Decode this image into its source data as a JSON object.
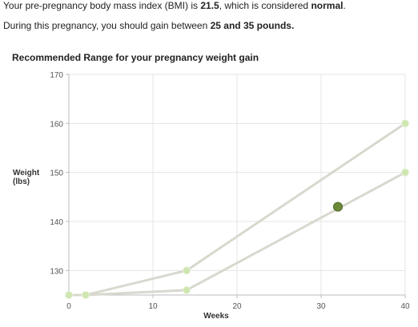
{
  "summary": {
    "bmi_prefix": "Your pre-pregnancy body mass index (BMI) is ",
    "bmi_value": "21.5",
    "bmi_middle": ", which is considered ",
    "bmi_category": "normal",
    "bmi_suffix": ".",
    "gain_prefix": "During this pregnancy, you should gain between ",
    "gain_range": "25 and 35 pounds.",
    "gain_suffix": ""
  },
  "colors": {
    "range_line": "#d8d8cf",
    "range_point": "#cfe6b0",
    "current_point": "#6b8a3a",
    "grid": "#e4e4e4",
    "axis": "#bbbbbb"
  },
  "chart_data": {
    "type": "line",
    "title": "Recommended Range for your pregnancy weight gain",
    "xlabel": "Weeks",
    "ylabel_lines": [
      "Weight",
      "(lbs)"
    ],
    "xlim": [
      0,
      40
    ],
    "ylim": [
      125,
      170
    ],
    "x_ticks": [
      0,
      10,
      20,
      30,
      40
    ],
    "y_ticks": [
      130,
      140,
      150,
      160,
      170
    ],
    "grid": true,
    "series": [
      {
        "points": [
          [
            0,
            125
          ],
          [
            2,
            125
          ],
          [
            14,
            130
          ],
          [
            40,
            160
          ]
        ]
      },
      {
        "points": [
          [
            0,
            125
          ],
          [
            2,
            125
          ],
          [
            14,
            126
          ],
          [
            40,
            150
          ]
        ]
      }
    ],
    "current": {
      "x": 32,
      "y": 143
    }
  }
}
